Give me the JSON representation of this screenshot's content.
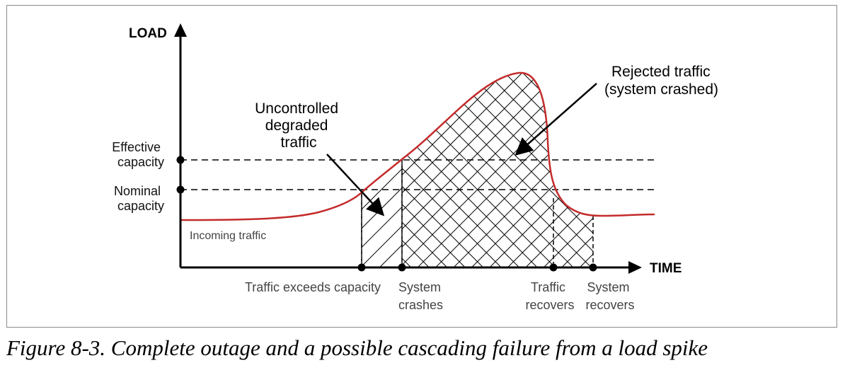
{
  "axes": {
    "y_title": "LOAD",
    "x_title": "TIME"
  },
  "y_labels": {
    "effective": [
      "Effective",
      "capacity"
    ],
    "nominal": [
      "Nominal",
      "capacity"
    ]
  },
  "x_labels": {
    "exceeds": "Traffic exceeds capacity",
    "crashes": [
      "System",
      "crashes"
    ],
    "traffic_recovers": [
      "Traffic",
      "recovers"
    ],
    "system_recovers": [
      "System",
      "recovers"
    ]
  },
  "annotations": {
    "incoming": "Incoming traffic",
    "uncontrolled": [
      "Uncontrolled",
      "degraded",
      "traffic"
    ],
    "rejected": [
      "Rejected traffic",
      "(system crashed)"
    ]
  },
  "colors": {
    "curve": "#c42b2b",
    "axis": "#000000",
    "dashed": "#000000"
  },
  "caption": "Figure 8-3. Complete outage and a possible cascading failure from a load spike"
}
